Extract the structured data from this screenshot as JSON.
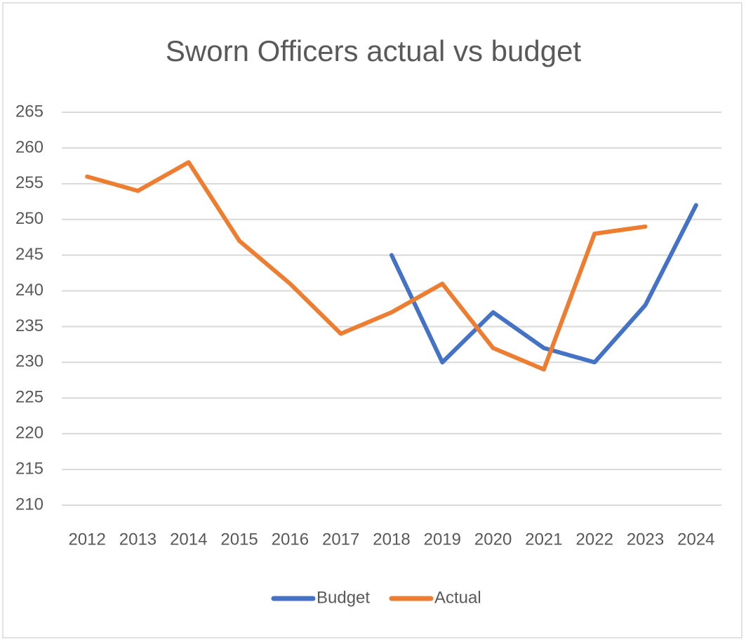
{
  "chart_data": {
    "type": "line",
    "title": "Sworn Officers actual vs budget",
    "categories": [
      "2012",
      "2013",
      "2014",
      "2015",
      "2016",
      "2017",
      "2018",
      "2019",
      "2020",
      "2021",
      "2022",
      "2023",
      "2024"
    ],
    "series": [
      {
        "name": "Budget",
        "color": "#4472c4",
        "values": [
          null,
          null,
          null,
          null,
          null,
          null,
          245,
          230,
          237,
          232,
          230,
          238,
          252
        ]
      },
      {
        "name": "Actual",
        "color": "#ed7d31",
        "values": [
          256,
          254,
          258,
          247,
          241,
          234,
          237,
          241,
          232,
          229,
          248,
          249,
          null
        ]
      }
    ],
    "ylim": [
      210,
      265
    ],
    "yticks": [
      210,
      215,
      220,
      225,
      230,
      235,
      240,
      245,
      250,
      255,
      260,
      265
    ],
    "grid": true,
    "legend": "bottom"
  }
}
